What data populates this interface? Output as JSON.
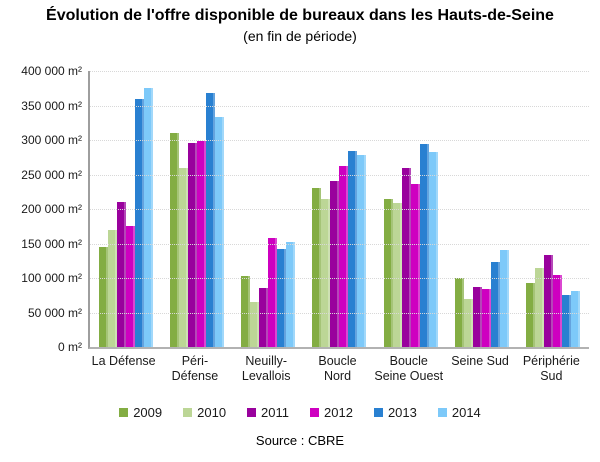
{
  "header": {
    "title": "Évolution de l'offre disponible de bureaux dans les Hauts-de-Seine",
    "subtitle": "(en fin de période)"
  },
  "footer": {
    "source": "Source : CBRE"
  },
  "chart_data": {
    "type": "bar",
    "title": "Évolution de l'offre disponible de bureaux dans les Hauts-de-Seine",
    "subtitle": "(en fin de période)",
    "xlabel": "",
    "ylabel": "",
    "unit": "m²",
    "ylim": [
      0,
      400000
    ],
    "ytick_step": 50000,
    "grid": true,
    "legend_position": "bottom",
    "yticks": [
      {
        "value": 400000,
        "label": "400 000 m²"
      },
      {
        "value": 350000,
        "label": "350 000 m²"
      },
      {
        "value": 300000,
        "label": "300 000 m²"
      },
      {
        "value": 250000,
        "label": "250 000 m²"
      },
      {
        "value": 200000,
        "label": "200 000 m²"
      },
      {
        "value": 150000,
        "label": "150 000 m²"
      },
      {
        "value": 100000,
        "label": "100 000 m²"
      },
      {
        "value": 50000,
        "label": "50 000 m²"
      },
      {
        "value": 0,
        "label": "0 m²"
      }
    ],
    "categories": [
      "La Défense",
      "Péri-Défense",
      "Neuilly-Levallois",
      "Boucle Nord",
      "Boucle Seine Ouest",
      "Seine Sud",
      "Périphérie Sud"
    ],
    "category_label_lines": [
      [
        "La Défense"
      ],
      [
        "Péri-",
        "Défense"
      ],
      [
        "Neuilly-",
        "Levallois"
      ],
      [
        "Boucle",
        "Nord"
      ],
      [
        "Boucle",
        "Seine Ouest"
      ],
      [
        "Seine Sud"
      ],
      [
        "Périphérie",
        "Sud"
      ]
    ],
    "series": [
      {
        "name": "2009",
        "color": "#83AD43",
        "values": [
          145000,
          310000,
          103000,
          230000,
          214000,
          100000,
          93000
        ]
      },
      {
        "name": "2010",
        "color": "#BCD696",
        "values": [
          170000,
          259000,
          65000,
          214000,
          209000,
          69000,
          115000
        ]
      },
      {
        "name": "2011",
        "color": "#99019D",
        "values": [
          210000,
          296000,
          86000,
          241000,
          260000,
          87000,
          134000
        ]
      },
      {
        "name": "2012",
        "color": "#CE00C0",
        "values": [
          175000,
          298000,
          158000,
          263000,
          236000,
          84000,
          105000
        ]
      },
      {
        "name": "2013",
        "color": "#2980D1",
        "values": [
          360000,
          368000,
          142000,
          284000,
          294000,
          123000,
          75000
        ]
      },
      {
        "name": "2014",
        "color": "#7DC9F9",
        "values": [
          376000,
          333000,
          152000,
          278000,
          282000,
          141000,
          81000
        ]
      }
    ],
    "source": "Source : CBRE"
  },
  "colors": {
    "gridline": "#d8d8d8",
    "axis_left": "#9e9e9e",
    "axis_bottom": "#b2b2b2"
  }
}
